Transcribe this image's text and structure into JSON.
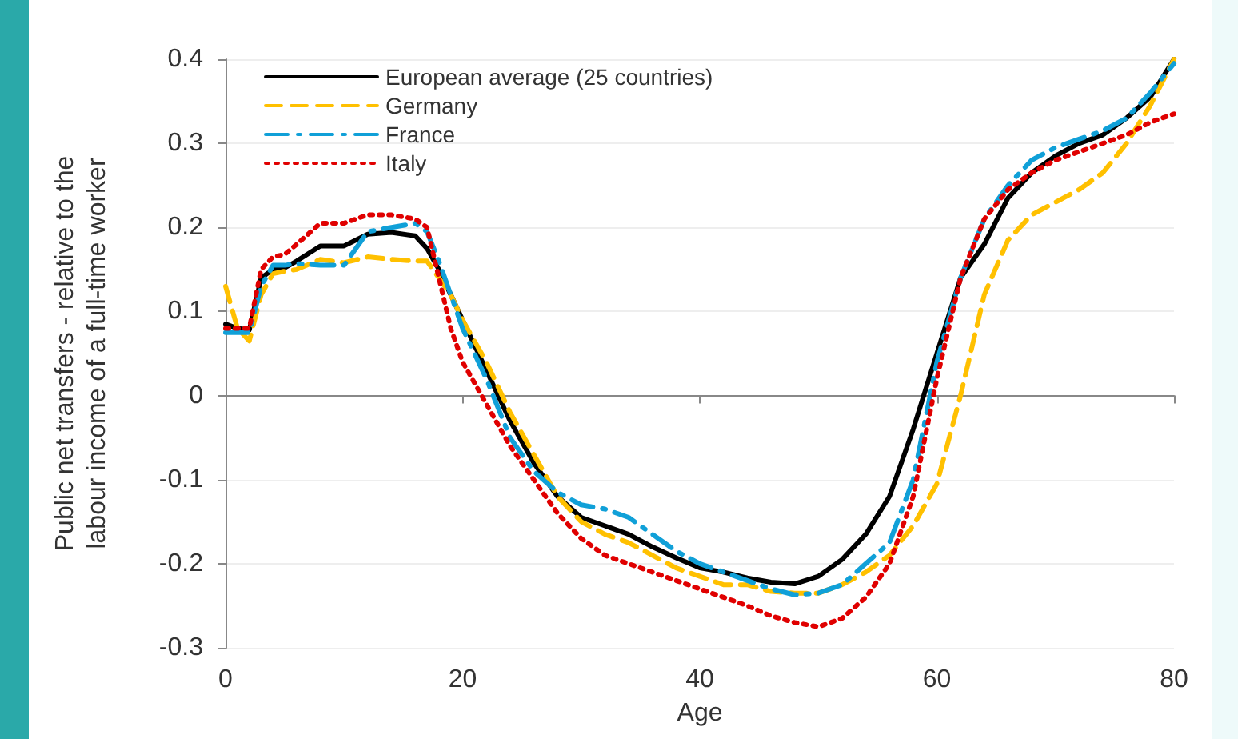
{
  "chart_data": {
    "type": "line",
    "xlabel": "Age",
    "ylabel": "Public net transfers - relative to the labour income of a full-time worker",
    "x": [
      0,
      1,
      2,
      3,
      4,
      5,
      6,
      8,
      10,
      12,
      14,
      16,
      17,
      18,
      19,
      20,
      22,
      24,
      26,
      28,
      30,
      32,
      34,
      36,
      38,
      40,
      42,
      44,
      46,
      48,
      50,
      52,
      54,
      56,
      58,
      60,
      62,
      64,
      66,
      68,
      70,
      72,
      74,
      76,
      78,
      80
    ],
    "series": [
      {
        "name": "European average (25 countries)",
        "color": "#000000",
        "line_style": "solid",
        "values": [
          0.085,
          0.08,
          0.078,
          0.14,
          0.15,
          0.152,
          0.16,
          0.178,
          0.178,
          0.192,
          0.194,
          0.19,
          0.175,
          0.15,
          0.12,
          0.09,
          0.03,
          -0.03,
          -0.08,
          -0.12,
          -0.145,
          -0.155,
          -0.165,
          -0.18,
          -0.193,
          -0.205,
          -0.21,
          -0.217,
          -0.222,
          -0.224,
          -0.215,
          -0.195,
          -0.165,
          -0.12,
          -0.04,
          0.05,
          0.14,
          0.18,
          0.235,
          0.265,
          0.285,
          0.3,
          0.31,
          0.33,
          0.355,
          0.4
        ]
      },
      {
        "name": "Germany",
        "color": "#ffc000",
        "line_style": "dashed",
        "values": [
          0.13,
          0.08,
          0.065,
          0.12,
          0.145,
          0.148,
          0.15,
          0.162,
          0.158,
          0.165,
          0.162,
          0.16,
          0.16,
          0.14,
          0.12,
          0.09,
          0.04,
          -0.02,
          -0.07,
          -0.12,
          -0.15,
          -0.165,
          -0.175,
          -0.19,
          -0.205,
          -0.215,
          -0.225,
          -0.225,
          -0.233,
          -0.235,
          -0.235,
          -0.225,
          -0.21,
          -0.19,
          -0.155,
          -0.105,
          0.0,
          0.12,
          0.185,
          0.215,
          0.23,
          0.245,
          0.265,
          0.3,
          0.345,
          0.4
        ]
      },
      {
        "name": "France",
        "color": "#10a0d8",
        "line_style": "dashdot",
        "values": [
          0.075,
          0.075,
          0.075,
          0.13,
          0.155,
          0.155,
          0.157,
          0.155,
          0.155,
          0.195,
          0.2,
          0.205,
          0.195,
          0.16,
          0.12,
          0.08,
          0.02,
          -0.05,
          -0.09,
          -0.115,
          -0.13,
          -0.135,
          -0.145,
          -0.165,
          -0.185,
          -0.2,
          -0.21,
          -0.22,
          -0.23,
          -0.237,
          -0.235,
          -0.225,
          -0.2,
          -0.175,
          -0.1,
          0.04,
          0.14,
          0.21,
          0.25,
          0.28,
          0.295,
          0.305,
          0.315,
          0.33,
          0.36,
          0.395
        ]
      },
      {
        "name": "Italy",
        "color": "#e00000",
        "line_style": "dotted",
        "values": [
          0.08,
          0.08,
          0.08,
          0.15,
          0.165,
          0.168,
          0.18,
          0.205,
          0.205,
          0.215,
          0.215,
          0.21,
          0.2,
          0.14,
          0.08,
          0.04,
          -0.01,
          -0.06,
          -0.1,
          -0.14,
          -0.17,
          -0.19,
          -0.2,
          -0.21,
          -0.22,
          -0.23,
          -0.24,
          -0.25,
          -0.262,
          -0.27,
          -0.275,
          -0.265,
          -0.24,
          -0.2,
          -0.12,
          0.02,
          0.14,
          0.21,
          0.245,
          0.265,
          0.28,
          0.29,
          0.3,
          0.31,
          0.325,
          0.335
        ]
      }
    ],
    "xlim": [
      0,
      80
    ],
    "xticks": [
      0,
      20,
      40,
      60,
      80
    ],
    "ylim": [
      -0.3,
      0.4
    ],
    "yticks": [
      -0.3,
      -0.2,
      -0.1,
      0,
      0.1,
      0.2,
      0.3,
      0.4
    ],
    "grid": "y",
    "legend": "top left",
    "marker": "none"
  }
}
